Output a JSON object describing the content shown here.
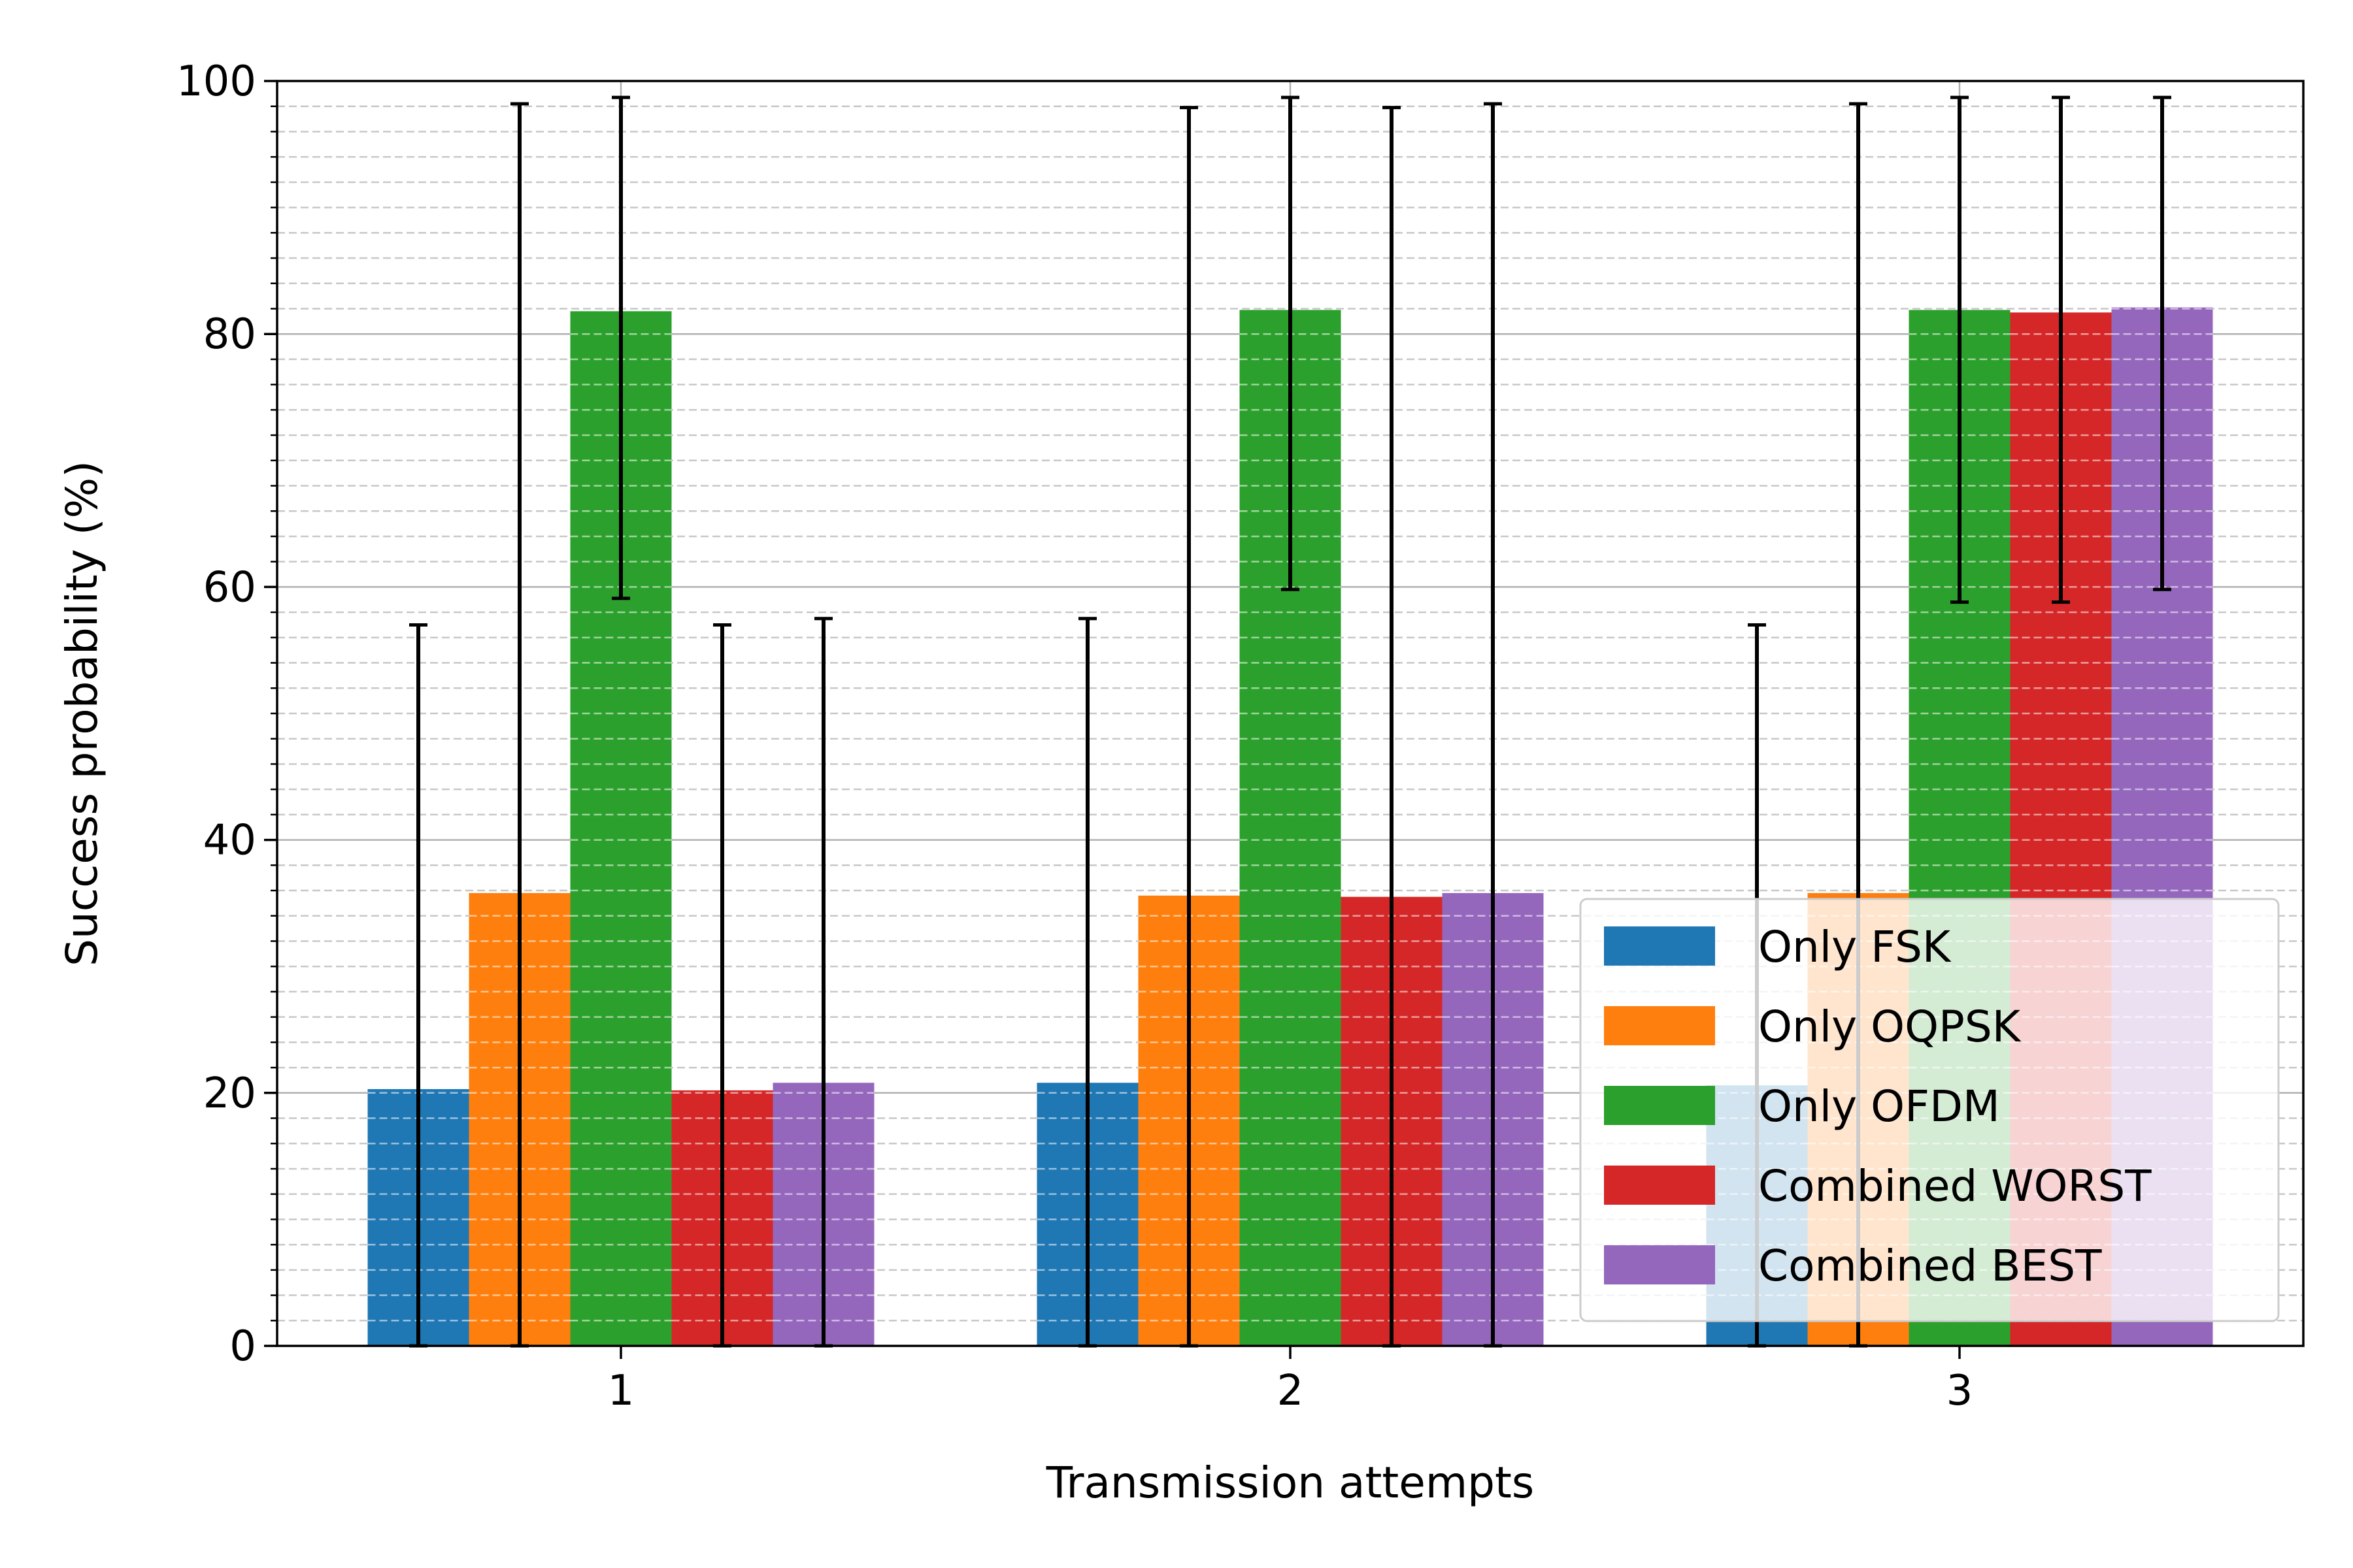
{
  "chart_data": {
    "type": "bar",
    "title": "",
    "xlabel": "Transmission attempts",
    "ylabel": "Success probability (%)",
    "categories": [
      "1",
      "2",
      "3"
    ],
    "ylim": [
      0,
      100
    ],
    "yticks": [
      "0",
      "20",
      "40",
      "60",
      "80",
      "100"
    ],
    "grid": true,
    "legend_position": "lower-right",
    "series": [
      {
        "name": "Only FSK",
        "color": "#1f77b4",
        "values": [
          20.3,
          20.8,
          20.6
        ],
        "err_low": [
          0,
          0,
          0
        ],
        "err_high": [
          57.0,
          57.5,
          57.0
        ]
      },
      {
        "name": "Only OQPSK",
        "color": "#ff7f0e",
        "values": [
          35.8,
          35.6,
          35.8
        ],
        "err_low": [
          0,
          0,
          0
        ],
        "err_high": [
          98.2,
          97.9,
          98.2
        ]
      },
      {
        "name": "Only OFDM",
        "color": "#2ca02c",
        "values": [
          81.8,
          81.9,
          81.9
        ],
        "err_low": [
          59.1,
          59.8,
          58.8
        ],
        "err_high": [
          98.7,
          98.7,
          98.7
        ]
      },
      {
        "name": "Combined WORST",
        "color": "#d62728",
        "values": [
          20.2,
          35.5,
          81.7
        ],
        "err_low": [
          0,
          0,
          58.8
        ],
        "err_high": [
          57.0,
          97.9,
          98.7
        ]
      },
      {
        "name": "Combined BEST",
        "color": "#9467bd",
        "values": [
          20.8,
          35.8,
          82.1
        ],
        "err_low": [
          0,
          0,
          59.8
        ],
        "err_high": [
          57.5,
          98.2,
          98.7
        ]
      }
    ]
  }
}
